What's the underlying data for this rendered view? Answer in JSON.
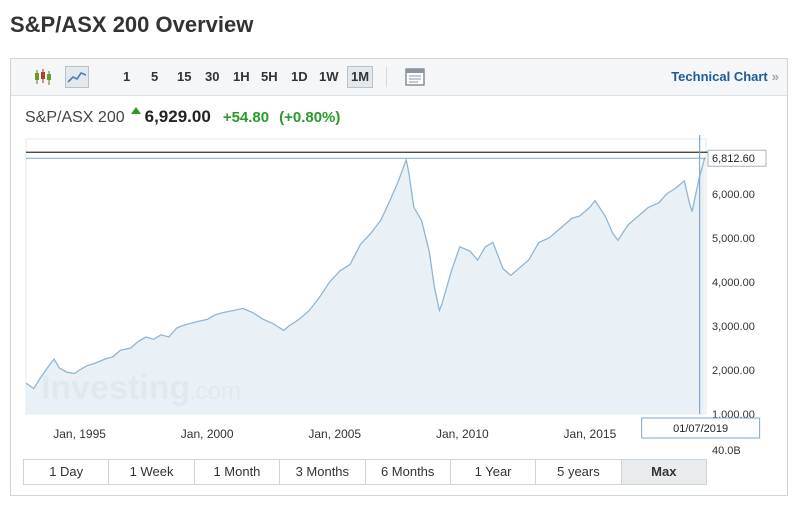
{
  "page_title": "S&P/ASX 200 Overview",
  "toolbar": {
    "ranges": [
      "1",
      "5",
      "15",
      "30",
      "1H",
      "5H",
      "1D",
      "1W",
      "1M"
    ],
    "active_range": "1M",
    "technical_chart_label": "Technical Chart",
    "technical_chart_arrow": "»"
  },
  "quote": {
    "name": "S&P/ASX 200",
    "price": "6,929.00",
    "change": "+54.80",
    "change_pct": "(+0.80%)",
    "up_color": "#2a9a2a"
  },
  "watermark": {
    "main": "Investing",
    "suffix": ".com"
  },
  "period_tabs": [
    "1 Day",
    "1 Week",
    "1 Month",
    "3 Months",
    "6 Months",
    "1 Year",
    "5 years",
    "Max"
  ],
  "active_period": "Max",
  "chart_data": {
    "type": "area",
    "x_labels": [
      "Jan, 1995",
      "Jan, 2000",
      "Jan, 2005",
      "Jan, 2010",
      "Jan, 2015"
    ],
    "y_ticks": [
      1000,
      2000,
      3000,
      4000,
      5000,
      6000
    ],
    "y_tick_labels": [
      "1,000.00",
      "2,000.00",
      "3,000.00",
      "4,000.00",
      "5,000.00",
      "6,000.00"
    ],
    "ylim": [
      1000,
      7250
    ],
    "last_value_label": "6,812.60",
    "last_value": 6812.6,
    "crosshair_date": "01/07/2019",
    "volume_label": "40.0B",
    "line_color": "#8fb6d3",
    "fill_color": "#e6eff5",
    "series": [
      {
        "x": [
          1992.9,
          1993.2,
          1993.5,
          1993.8,
          1994.0,
          1994.2,
          1994.5,
          1994.8,
          1995.0,
          1995.3,
          1995.6,
          1996.0,
          1996.3,
          1996.6,
          1997.0,
          1997.3,
          1997.6,
          1997.9,
          1998.2,
          1998.5,
          1998.8,
          1999.0,
          1999.3,
          1999.6,
          2000.0,
          2000.3,
          2000.6,
          2001.0,
          2001.4,
          2001.8,
          2002.2,
          2002.6,
          2003.0,
          2003.2,
          2003.6,
          2004.0,
          2004.4,
          2004.8,
          2005.2,
          2005.6,
          2006.0,
          2006.4,
          2006.8,
          2007.2,
          2007.5,
          2007.8,
          2007.9,
          2008.1,
          2008.4,
          2008.7,
          2008.9,
          2009.1,
          2009.2,
          2009.6,
          2009.9,
          2010.3,
          2010.6,
          2010.9,
          2011.2,
          2011.6,
          2011.9,
          2012.2,
          2012.6,
          2013.0,
          2013.4,
          2013.7,
          2014.0,
          2014.3,
          2014.6,
          2015.0,
          2015.2,
          2015.6,
          2015.9,
          2016.1,
          2016.5,
          2016.9,
          2017.3,
          2017.7,
          2018.0,
          2018.4,
          2018.7,
          2018.9,
          2019.0,
          2019.3,
          2019.5
        ],
        "y": [
          1700,
          1580,
          1850,
          2100,
          2250,
          2050,
          1950,
          1920,
          2000,
          2100,
          2150,
          2250,
          2300,
          2450,
          2500,
          2650,
          2750,
          2700,
          2800,
          2750,
          2950,
          3000,
          3050,
          3100,
          3150,
          3250,
          3300,
          3350,
          3400,
          3300,
          3150,
          3050,
          2900,
          3000,
          3150,
          3350,
          3650,
          4000,
          4250,
          4400,
          4850,
          5100,
          5400,
          5900,
          6300,
          6780,
          6500,
          5700,
          5400,
          4700,
          3900,
          3350,
          3500,
          4300,
          4800,
          4700,
          4500,
          4800,
          4900,
          4300,
          4150,
          4300,
          4500,
          4900,
          5000,
          5150,
          5300,
          5450,
          5500,
          5700,
          5850,
          5500,
          5100,
          4950,
          5300,
          5500,
          5700,
          5800,
          6000,
          6150,
          6300,
          5800,
          5600,
          6400,
          6820
        ]
      }
    ]
  }
}
